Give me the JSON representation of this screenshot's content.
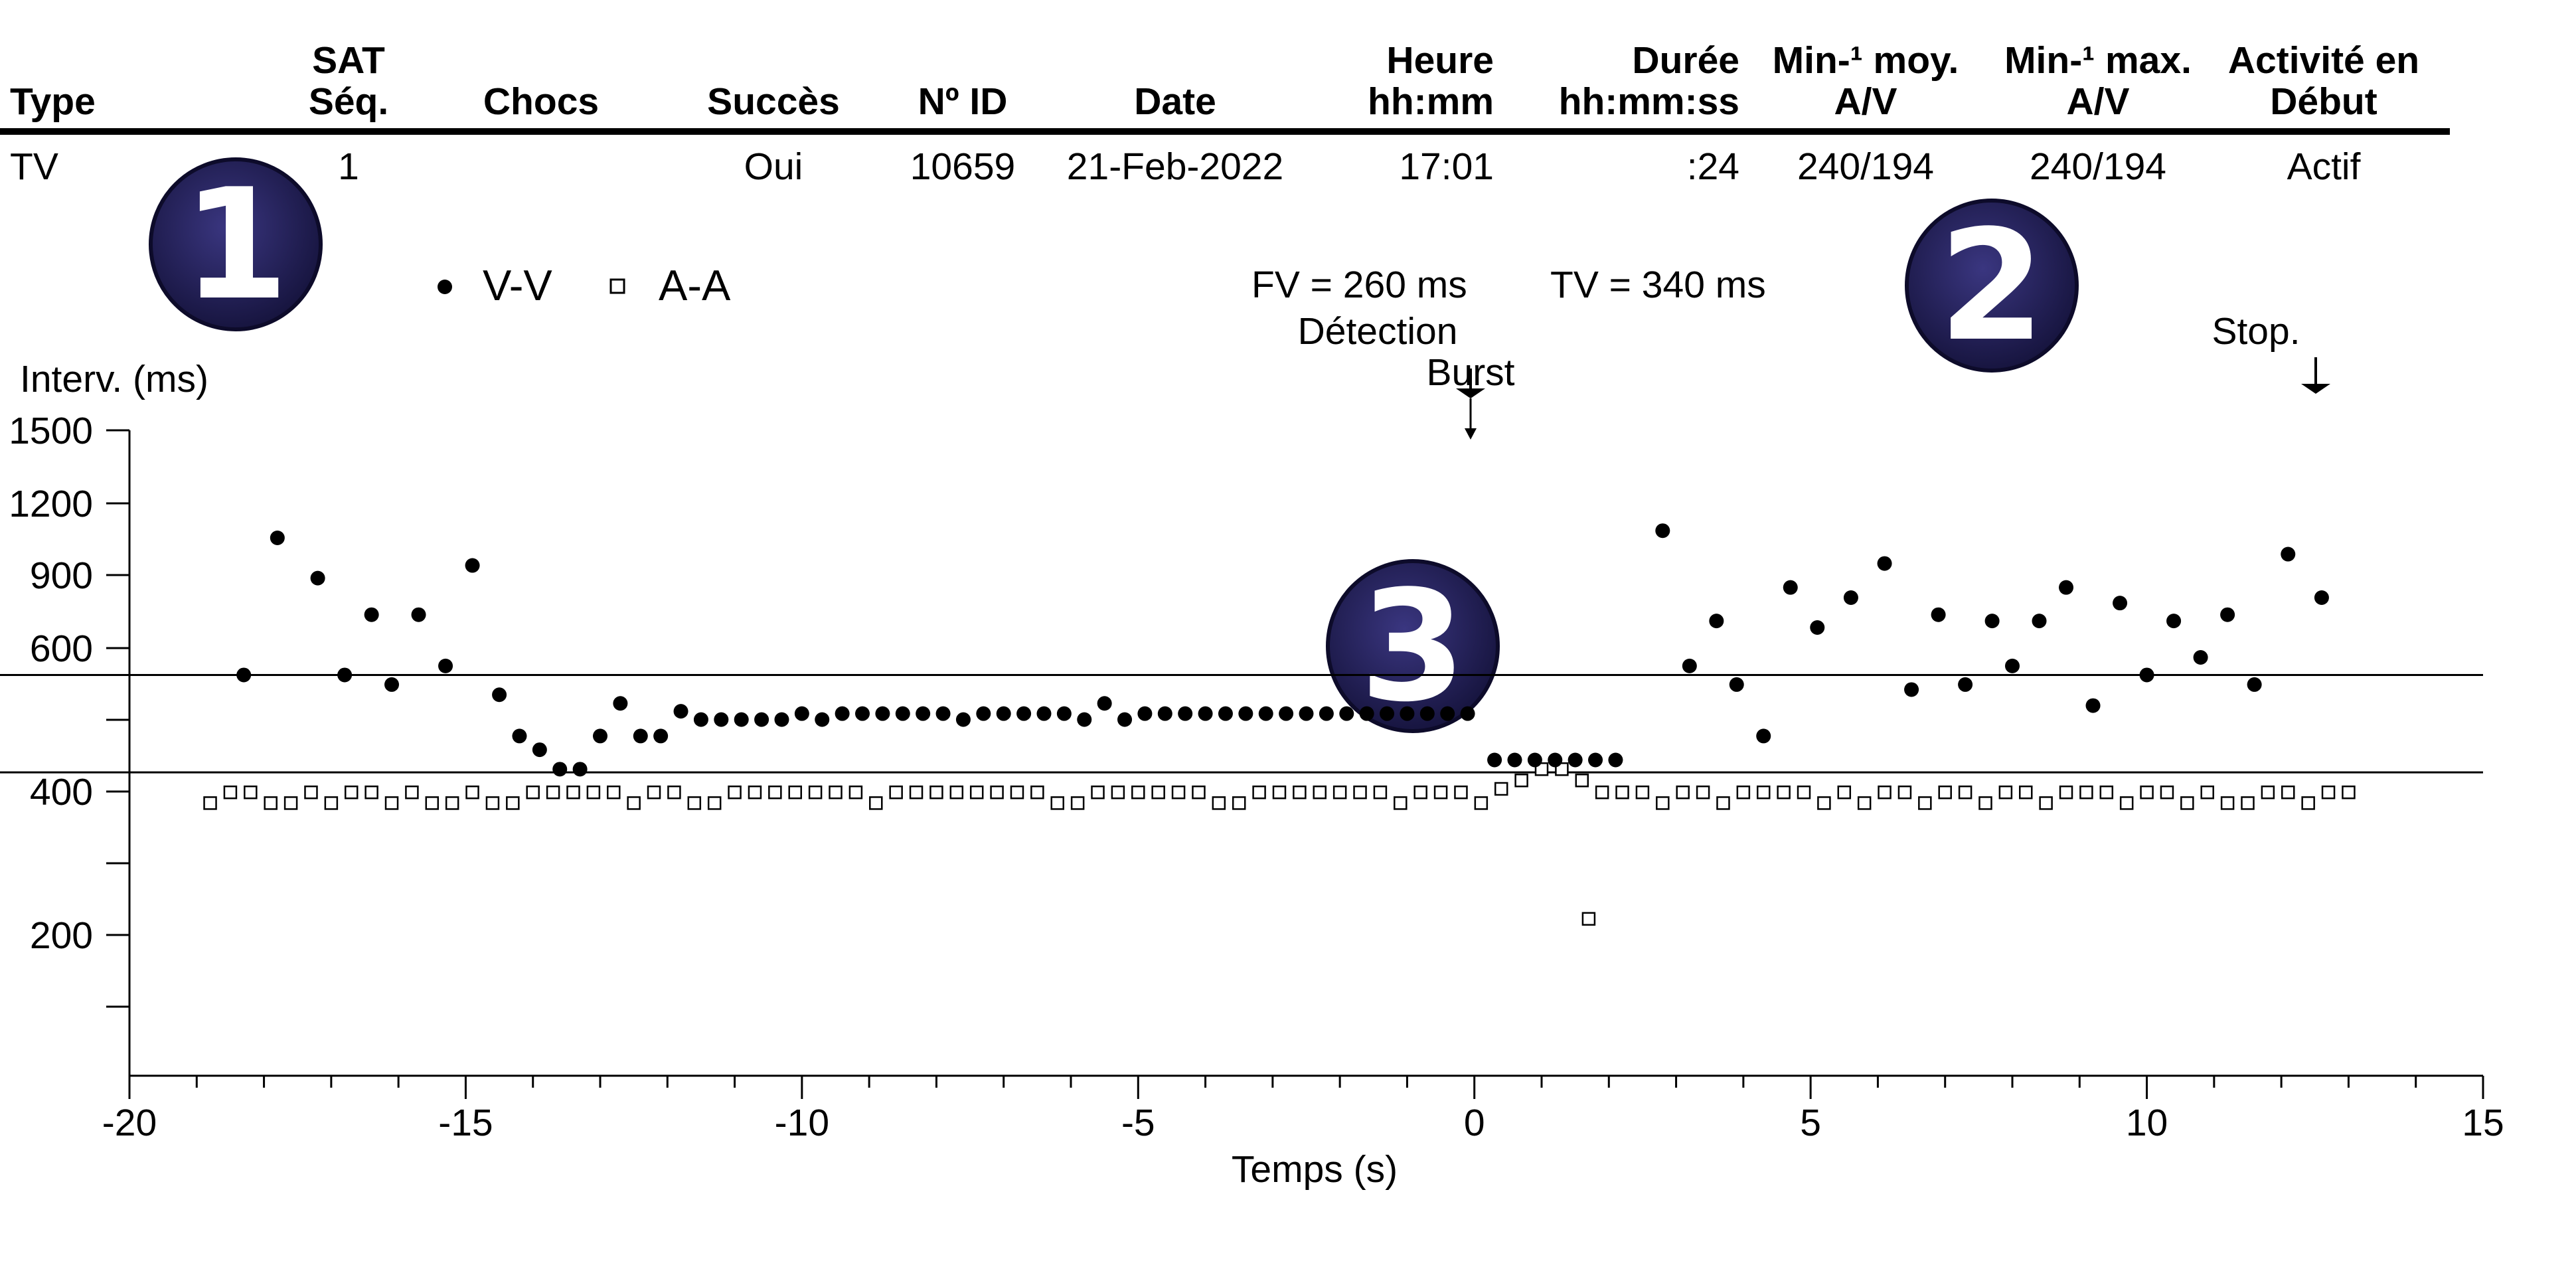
{
  "table": {
    "columns": [
      {
        "key": "type",
        "lines": [
          "Type"
        ]
      },
      {
        "key": "sat",
        "lines": [
          "SAT",
          "Séq."
        ]
      },
      {
        "key": "chocs",
        "lines": [
          "Chocs"
        ]
      },
      {
        "key": "succes",
        "lines": [
          "Succès"
        ]
      },
      {
        "key": "id",
        "lines": [
          "Nº ID"
        ]
      },
      {
        "key": "date",
        "lines": [
          "Date"
        ]
      },
      {
        "key": "heure",
        "lines": [
          "Heure",
          "hh:mm"
        ]
      },
      {
        "key": "duree",
        "lines": [
          "Durée",
          "hh:mm:ss"
        ]
      },
      {
        "key": "minmoy",
        "lines": [
          "Min-¹ moy.",
          "A/V"
        ]
      },
      {
        "key": "minmax",
        "lines": [
          "Min-¹ max.",
          "A/V"
        ]
      },
      {
        "key": "activite",
        "lines": [
          "Activité en",
          "Début"
        ]
      }
    ],
    "row": {
      "type": "TV",
      "sat": "1",
      "chocs": "",
      "succes": "Oui",
      "id": "10659",
      "date": "21-Feb-2022",
      "heure": "17:01",
      "duree": ":24",
      "minmoy": "240/194",
      "minmax": "240/194",
      "activite": "Actif"
    }
  },
  "badges": [
    "1",
    "2",
    "3"
  ],
  "colors": {
    "badge": "#1e1b4e",
    "ink": "#000000"
  },
  "chart_data": {
    "type": "scatter",
    "xlabel": "Temps (s)",
    "ylabel": "Interv. (ms)",
    "xlim": [
      -20,
      15
    ],
    "x_ticks": [
      -20,
      -15,
      -10,
      -5,
      0,
      5,
      10,
      15
    ],
    "y_scale": "reciprocal (rate-linear)",
    "y_ticks": [
      "1500",
      "1200",
      "900",
      "600",
      "",
      "400",
      "",
      "200",
      ""
    ],
    "grid": false,
    "legend_position": "top-left",
    "series": [
      {
        "name": "V-V",
        "marker": "filled-circle",
        "points": [
          [
            -18.3,
            340
          ],
          [
            -17.8,
            600
          ],
          [
            -17.2,
            490
          ],
          [
            -16.8,
            340
          ],
          [
            -16.4,
            420
          ],
          [
            -16.1,
            330
          ],
          [
            -15.7,
            420
          ],
          [
            -15.3,
            350
          ],
          [
            -14.9,
            520
          ],
          [
            -14.5,
            320
          ],
          [
            -14.2,
            285
          ],
          [
            -13.9,
            275
          ],
          [
            -13.6,
            262
          ],
          [
            -13.3,
            262
          ],
          [
            -13.0,
            285
          ],
          [
            -12.7,
            312
          ],
          [
            -12.4,
            285
          ],
          [
            -12.1,
            285
          ],
          [
            -11.8,
            305
          ],
          [
            -11.5,
            298
          ],
          [
            -11.2,
            298
          ],
          [
            -10.9,
            298
          ],
          [
            -10.6,
            298
          ],
          [
            -10.3,
            298
          ],
          [
            -10.0,
            303
          ],
          [
            -9.7,
            298
          ],
          [
            -9.4,
            303
          ],
          [
            -9.1,
            303
          ],
          [
            -8.8,
            303
          ],
          [
            -8.5,
            303
          ],
          [
            -8.2,
            303
          ],
          [
            -7.9,
            303
          ],
          [
            -7.6,
            298
          ],
          [
            -7.3,
            303
          ],
          [
            -7.0,
            303
          ],
          [
            -6.7,
            303
          ],
          [
            -6.4,
            303
          ],
          [
            -6.1,
            303
          ],
          [
            -5.8,
            298
          ],
          [
            -5.5,
            312
          ],
          [
            -5.2,
            298
          ],
          [
            -4.9,
            303
          ],
          [
            -4.6,
            303
          ],
          [
            -4.3,
            303
          ],
          [
            -4.0,
            303
          ],
          [
            -3.7,
            303
          ],
          [
            -3.4,
            303
          ],
          [
            -3.1,
            303
          ],
          [
            -2.8,
            303
          ],
          [
            -2.5,
            303
          ],
          [
            -2.2,
            303
          ],
          [
            -1.9,
            303
          ],
          [
            -1.6,
            303
          ],
          [
            -1.3,
            303
          ],
          [
            -1.0,
            303
          ],
          [
            -0.7,
            303
          ],
          [
            -0.4,
            303
          ],
          [
            -0.1,
            303
          ],
          [
            0.3,
            268
          ],
          [
            0.6,
            268
          ],
          [
            0.9,
            268
          ],
          [
            1.2,
            268
          ],
          [
            1.5,
            268
          ],
          [
            1.8,
            268
          ],
          [
            2.1,
            268
          ],
          [
            2.8,
            625
          ],
          [
            3.2,
            350
          ],
          [
            3.6,
            410
          ],
          [
            3.9,
            330
          ],
          [
            4.3,
            285
          ],
          [
            4.7,
            470
          ],
          [
            5.1,
            400
          ],
          [
            5.6,
            450
          ],
          [
            6.1,
            525
          ],
          [
            6.5,
            325
          ],
          [
            6.9,
            420
          ],
          [
            7.3,
            330
          ],
          [
            7.7,
            410
          ],
          [
            8.0,
            350
          ],
          [
            8.4,
            410
          ],
          [
            8.8,
            470
          ],
          [
            9.2,
            310
          ],
          [
            9.6,
            440
          ],
          [
            10.0,
            340
          ],
          [
            10.4,
            410
          ],
          [
            10.8,
            360
          ],
          [
            11.2,
            420
          ],
          [
            11.6,
            330
          ],
          [
            12.1,
            550
          ],
          [
            12.6,
            450
          ]
        ]
      },
      {
        "name": "A-A",
        "marker": "open-square",
        "points": [
          [
            -18.8,
            242
          ],
          [
            -18.5,
            248
          ],
          [
            -18.2,
            248
          ],
          [
            -17.9,
            242
          ],
          [
            -17.6,
            242
          ],
          [
            -17.3,
            248
          ],
          [
            -17.0,
            242
          ],
          [
            -16.7,
            248
          ],
          [
            -16.4,
            248
          ],
          [
            -16.1,
            242
          ],
          [
            -15.8,
            248
          ],
          [
            -15.5,
            242
          ],
          [
            -15.2,
            242
          ],
          [
            -14.9,
            248
          ],
          [
            -14.6,
            242
          ],
          [
            -14.3,
            242
          ],
          [
            -14.0,
            248
          ],
          [
            -13.7,
            248
          ],
          [
            -13.4,
            248
          ],
          [
            -13.1,
            248
          ],
          [
            -12.8,
            248
          ],
          [
            -12.5,
            242
          ],
          [
            -12.2,
            248
          ],
          [
            -11.9,
            248
          ],
          [
            -11.6,
            242
          ],
          [
            -11.3,
            242
          ],
          [
            -11.0,
            248
          ],
          [
            -10.7,
            248
          ],
          [
            -10.4,
            248
          ],
          [
            -10.1,
            248
          ],
          [
            -9.8,
            248
          ],
          [
            -9.5,
            248
          ],
          [
            -9.2,
            248
          ],
          [
            -8.9,
            242
          ],
          [
            -8.6,
            248
          ],
          [
            -8.3,
            248
          ],
          [
            -8.0,
            248
          ],
          [
            -7.7,
            248
          ],
          [
            -7.4,
            248
          ],
          [
            -7.1,
            248
          ],
          [
            -6.8,
            248
          ],
          [
            -6.5,
            248
          ],
          [
            -6.2,
            242
          ],
          [
            -5.9,
            242
          ],
          [
            -5.6,
            248
          ],
          [
            -5.3,
            248
          ],
          [
            -5.0,
            248
          ],
          [
            -4.7,
            248
          ],
          [
            -4.4,
            248
          ],
          [
            -4.1,
            248
          ],
          [
            -3.8,
            242
          ],
          [
            -3.5,
            242
          ],
          [
            -3.2,
            248
          ],
          [
            -2.9,
            248
          ],
          [
            -2.6,
            248
          ],
          [
            -2.3,
            248
          ],
          [
            -2.0,
            248
          ],
          [
            -1.7,
            248
          ],
          [
            -1.4,
            248
          ],
          [
            -1.1,
            242
          ],
          [
            -0.8,
            248
          ],
          [
            -0.5,
            248
          ],
          [
            -0.2,
            248
          ],
          [
            0.1,
            242
          ],
          [
            0.4,
            250
          ],
          [
            0.7,
            255
          ],
          [
            1.0,
            262
          ],
          [
            1.3,
            262
          ],
          [
            1.6,
            255
          ],
          [
            1.7,
            192
          ],
          [
            1.9,
            248
          ],
          [
            2.2,
            248
          ],
          [
            2.5,
            248
          ],
          [
            2.8,
            242
          ],
          [
            3.1,
            248
          ],
          [
            3.4,
            248
          ],
          [
            3.7,
            242
          ],
          [
            4.0,
            248
          ],
          [
            4.3,
            248
          ],
          [
            4.6,
            248
          ],
          [
            4.9,
            248
          ],
          [
            5.2,
            242
          ],
          [
            5.5,
            248
          ],
          [
            5.8,
            242
          ],
          [
            6.1,
            248
          ],
          [
            6.4,
            248
          ],
          [
            6.7,
            242
          ],
          [
            7.0,
            248
          ],
          [
            7.3,
            248
          ],
          [
            7.6,
            242
          ],
          [
            7.9,
            248
          ],
          [
            8.2,
            248
          ],
          [
            8.5,
            242
          ],
          [
            8.8,
            248
          ],
          [
            9.1,
            248
          ],
          [
            9.4,
            248
          ],
          [
            9.7,
            242
          ],
          [
            10.0,
            248
          ],
          [
            10.3,
            248
          ],
          [
            10.6,
            242
          ],
          [
            10.9,
            248
          ],
          [
            11.2,
            242
          ],
          [
            11.5,
            242
          ],
          [
            11.8,
            248
          ],
          [
            12.1,
            248
          ],
          [
            12.4,
            242
          ],
          [
            12.7,
            248
          ],
          [
            13.0,
            248
          ]
        ]
      }
    ],
    "zone_lines": [
      {
        "label": "FV = 260 ms",
        "value": 260
      },
      {
        "label": "TV = 340 ms",
        "value": 340
      }
    ],
    "markers": [
      {
        "label": "Détection",
        "x": 0
      },
      {
        "label": "Burst",
        "x": 0
      },
      {
        "label": "Stop.",
        "x": 12.6
      }
    ]
  }
}
